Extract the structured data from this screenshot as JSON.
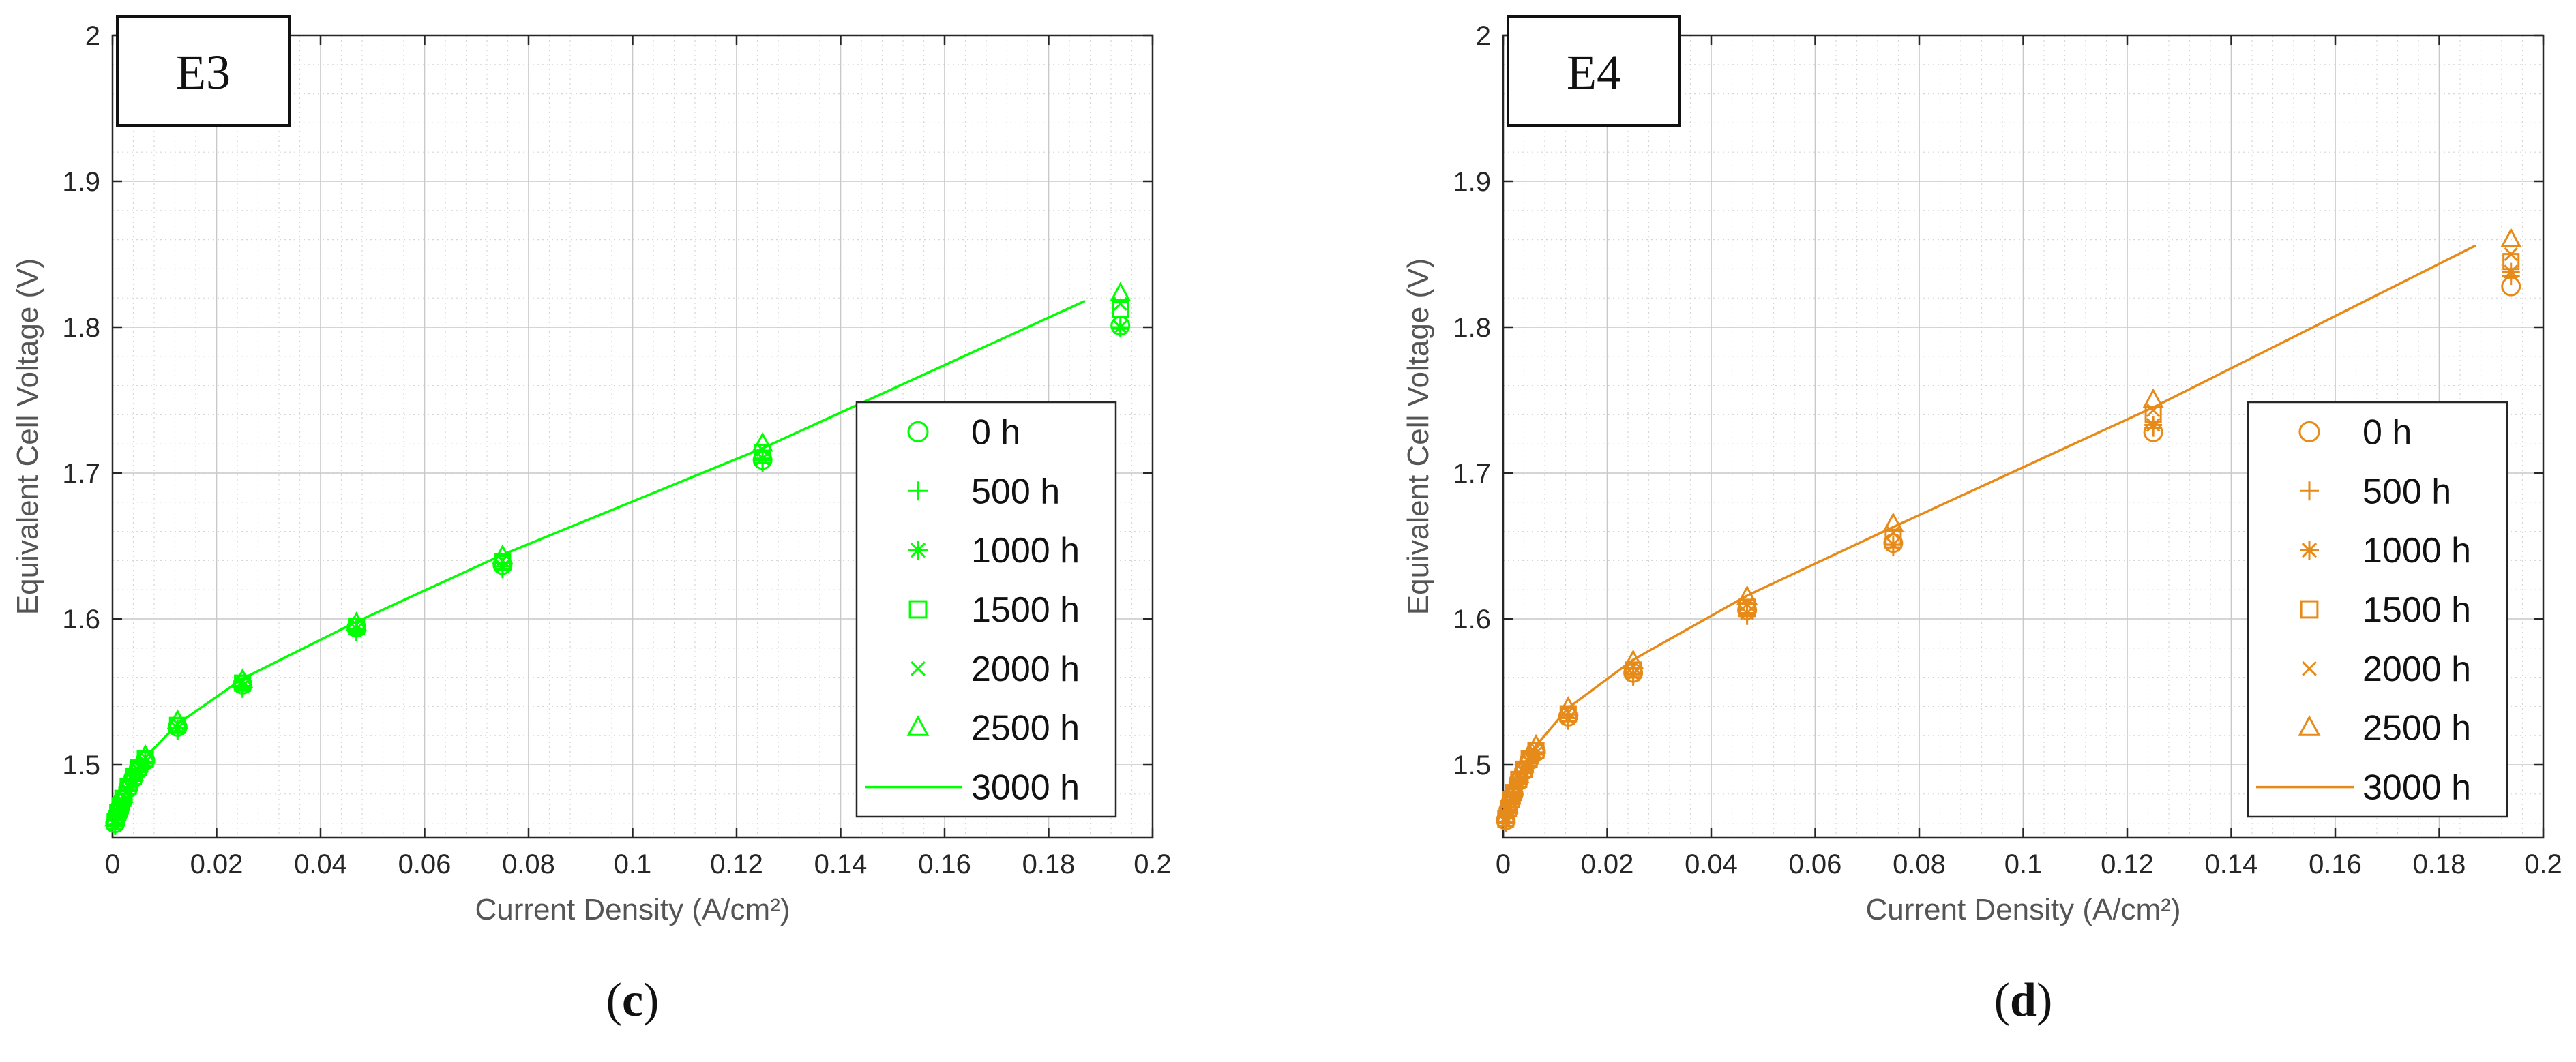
{
  "chart_data": [
    {
      "type": "scatter",
      "panel_id": "E3",
      "panel_label": "c",
      "color": "#00ff00",
      "xlabel": "Current Density (A/cm²)",
      "ylabel": "Equivalent Cell Voltage (V)",
      "xlim": [
        0,
        0.2
      ],
      "ylim": [
        1.45,
        2.0
      ],
      "x_ticks": [
        0,
        0.02,
        0.04,
        0.06,
        0.08,
        0.1,
        0.12,
        0.14,
        0.16,
        0.18,
        0.2
      ],
      "x_tick_labels": [
        "0",
        "0.02",
        "0.04",
        "0.06",
        "0.08",
        "0.1",
        "0.12",
        "0.14",
        "0.16",
        "0.18",
        "0.2"
      ],
      "y_ticks": [
        1.5,
        1.6,
        1.7,
        1.8,
        1.9,
        2.0
      ],
      "y_tick_labels": [
        "1.5",
        "1.6",
        "1.7",
        "1.8",
        "1.9",
        "2"
      ],
      "grid": true,
      "legend_position": "right",
      "x": [
        0.0005,
        0.001,
        0.0015,
        0.002,
        0.003,
        0.004,
        0.005,
        0.0063,
        0.0125,
        0.025,
        0.0469,
        0.075,
        0.125,
        0.1938
      ],
      "series": [
        {
          "name": "0 h",
          "marker": "circle",
          "values": [
            1.46,
            1.466,
            1.471,
            1.476,
            1.484,
            1.491,
            1.497,
            1.503,
            1.526,
            1.555,
            1.594,
            1.637,
            1.709,
            1.801
          ]
        },
        {
          "name": "500 h",
          "marker": "plus",
          "values": [
            1.458,
            1.464,
            1.469,
            1.474,
            1.482,
            1.489,
            1.495,
            1.501,
            1.523,
            1.552,
            1.591,
            1.634,
            1.707,
            1.799
          ]
        },
        {
          "name": "1000 h",
          "marker": "asterisk",
          "values": [
            1.459,
            1.465,
            1.47,
            1.475,
            1.483,
            1.49,
            1.496,
            1.502,
            1.525,
            1.554,
            1.593,
            1.636,
            1.71,
            1.8
          ]
        },
        {
          "name": "1500 h",
          "marker": "square",
          "values": [
            1.461,
            1.467,
            1.472,
            1.477,
            1.485,
            1.492,
            1.498,
            1.504,
            1.527,
            1.556,
            1.595,
            1.639,
            1.714,
            1.812
          ]
        },
        {
          "name": "2000 h",
          "marker": "cross",
          "values": [
            1.462,
            1.468,
            1.473,
            1.478,
            1.486,
            1.493,
            1.499,
            1.505,
            1.528,
            1.557,
            1.596,
            1.64,
            1.716,
            1.816
          ]
        },
        {
          "name": "2500 h",
          "marker": "triangle",
          "values": [
            1.463,
            1.469,
            1.474,
            1.479,
            1.487,
            1.494,
            1.5,
            1.506,
            1.53,
            1.558,
            1.597,
            1.643,
            1.72,
            1.823
          ]
        },
        {
          "name": "3000 h",
          "marker": "line",
          "x": [
            0.0005,
            0.001,
            0.0015,
            0.002,
            0.003,
            0.004,
            0.005,
            0.0063,
            0.0125,
            0.025,
            0.0469,
            0.075,
            0.125,
            0.187
          ],
          "values": [
            1.461,
            1.467,
            1.472,
            1.477,
            1.485,
            1.492,
            1.498,
            1.505,
            1.528,
            1.559,
            1.598,
            1.644,
            1.717,
            1.818
          ]
        }
      ]
    },
    {
      "type": "scatter",
      "panel_id": "E4",
      "panel_label": "d",
      "color": "#e68a1a",
      "xlabel": "Current Density (A/cm²)",
      "ylabel": "Equivalent Cell Voltage (V)",
      "xlim": [
        0,
        0.2
      ],
      "ylim": [
        1.45,
        2.0
      ],
      "x_ticks": [
        0,
        0.02,
        0.04,
        0.06,
        0.08,
        0.1,
        0.12,
        0.14,
        0.16,
        0.18,
        0.2
      ],
      "x_tick_labels": [
        "0",
        "0.02",
        "0.04",
        "0.06",
        "0.08",
        "0.1",
        "0.12",
        "0.14",
        "0.16",
        "0.18",
        "0.2"
      ],
      "y_ticks": [
        1.5,
        1.6,
        1.7,
        1.8,
        1.9,
        2.0
      ],
      "y_tick_labels": [
        "1.5",
        "1.6",
        "1.7",
        "1.8",
        "1.9",
        "2"
      ],
      "grid": true,
      "legend_position": "right",
      "x": [
        0.0005,
        0.001,
        0.0015,
        0.002,
        0.003,
        0.004,
        0.005,
        0.0063,
        0.0125,
        0.025,
        0.0469,
        0.075,
        0.125,
        0.1938
      ],
      "series": [
        {
          "name": "0 h",
          "marker": "circle",
          "values": [
            1.462,
            1.469,
            1.475,
            1.48,
            1.489,
            1.496,
            1.503,
            1.509,
            1.533,
            1.563,
            1.606,
            1.652,
            1.728,
            1.828
          ]
        },
        {
          "name": "500 h",
          "marker": "plus",
          "values": [
            1.46,
            1.467,
            1.473,
            1.478,
            1.487,
            1.494,
            1.501,
            1.507,
            1.53,
            1.56,
            1.602,
            1.649,
            1.731,
            1.835
          ]
        },
        {
          "name": "1000 h",
          "marker": "asterisk",
          "values": [
            1.461,
            1.468,
            1.474,
            1.479,
            1.488,
            1.495,
            1.502,
            1.508,
            1.532,
            1.562,
            1.604,
            1.651,
            1.733,
            1.838
          ]
        },
        {
          "name": "1500 h",
          "marker": "square",
          "values": [
            1.463,
            1.47,
            1.476,
            1.481,
            1.49,
            1.497,
            1.504,
            1.51,
            1.535,
            1.565,
            1.608,
            1.656,
            1.74,
            1.845
          ]
        },
        {
          "name": "2000 h",
          "marker": "cross",
          "values": [
            1.464,
            1.471,
            1.477,
            1.482,
            1.491,
            1.498,
            1.505,
            1.511,
            1.536,
            1.567,
            1.61,
            1.659,
            1.743,
            1.85
          ]
        },
        {
          "name": "2500 h",
          "marker": "triangle",
          "values": [
            1.465,
            1.472,
            1.478,
            1.484,
            1.493,
            1.5,
            1.507,
            1.513,
            1.539,
            1.571,
            1.615,
            1.665,
            1.75,
            1.86
          ]
        },
        {
          "name": "3000 h",
          "marker": "line",
          "x": [
            0.0005,
            0.001,
            0.0015,
            0.002,
            0.003,
            0.004,
            0.005,
            0.0063,
            0.0125,
            0.025,
            0.0469,
            0.075,
            0.125,
            0.187
          ],
          "values": [
            1.463,
            1.47,
            1.476,
            1.482,
            1.491,
            1.499,
            1.506,
            1.513,
            1.539,
            1.572,
            1.616,
            1.663,
            1.745,
            1.856
          ]
        }
      ]
    }
  ]
}
